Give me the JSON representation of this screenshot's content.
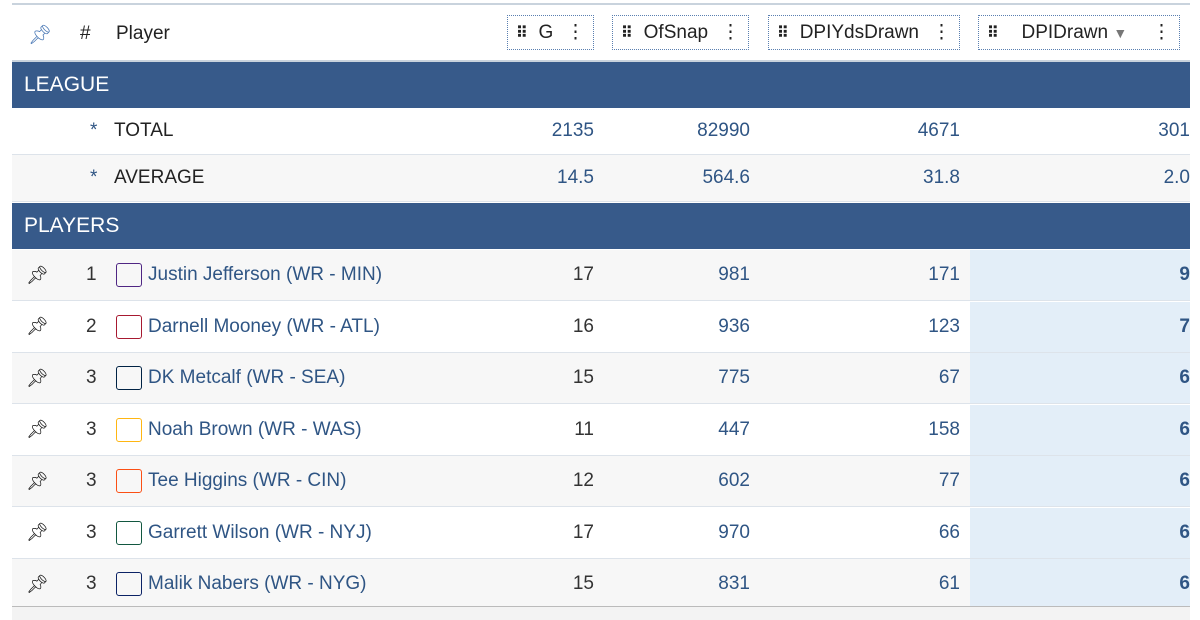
{
  "header": {
    "pin_icon": "pin-icon",
    "rank": "#",
    "player": "Player",
    "columns": [
      "G",
      "OfSnap",
      "DPIYdsDrawn",
      "DPIDrawn"
    ],
    "sorted_column": "DPIDrawn",
    "sort_direction": "descending"
  },
  "league": {
    "label": "LEAGUE",
    "rows": [
      {
        "marker": "*",
        "label": "TOTAL",
        "g": "2135",
        "ofsnap": "82990",
        "dpiyds": "4671",
        "dpi": "301"
      },
      {
        "marker": "*",
        "label": "AVERAGE",
        "g": "14.5",
        "ofsnap": "564.6",
        "dpiyds": "31.8",
        "dpi": "2.0"
      }
    ]
  },
  "players": {
    "label": "PLAYERS",
    "rows": [
      {
        "rank": "1",
        "name": "Justin Jefferson (WR - MIN)",
        "team": "MIN",
        "logo_color": "#4f2683",
        "g": "17",
        "ofsnap": "981",
        "dpiyds": "171",
        "dpi": "9"
      },
      {
        "rank": "2",
        "name": "Darnell Mooney (WR - ATL)",
        "team": "ATL",
        "logo_color": "#a71930",
        "g": "16",
        "ofsnap": "936",
        "dpiyds": "123",
        "dpi": "7"
      },
      {
        "rank": "3",
        "name": "DK Metcalf (WR - SEA)",
        "team": "SEA",
        "logo_color": "#002244",
        "g": "15",
        "ofsnap": "775",
        "dpiyds": "67",
        "dpi": "6"
      },
      {
        "rank": "3",
        "name": "Noah Brown (WR - WAS)",
        "team": "WAS",
        "logo_color": "#ffb612",
        "g": "11",
        "ofsnap": "447",
        "dpiyds": "158",
        "dpi": "6"
      },
      {
        "rank": "3",
        "name": "Tee Higgins (WR - CIN)",
        "team": "CIN",
        "logo_color": "#fb4f14",
        "g": "12",
        "ofsnap": "602",
        "dpiyds": "77",
        "dpi": "6"
      },
      {
        "rank": "3",
        "name": "Garrett Wilson (WR - NYJ)",
        "team": "NYJ",
        "logo_color": "#125740",
        "g": "17",
        "ofsnap": "970",
        "dpiyds": "66",
        "dpi": "6"
      },
      {
        "rank": "3",
        "name": "Malik Nabers (WR - NYG)",
        "team": "NYG",
        "logo_color": "#0b2265",
        "g": "15",
        "ofsnap": "831",
        "dpiyds": "61",
        "dpi": "6"
      }
    ]
  }
}
